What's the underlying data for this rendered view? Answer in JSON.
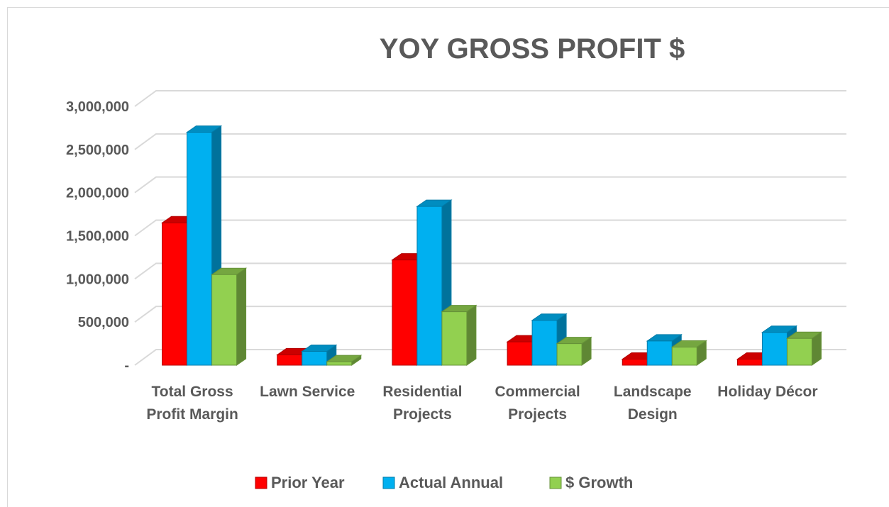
{
  "chart_data": {
    "type": "bar3d",
    "title": "YOY GROSS PROFIT $",
    "categories": [
      "Total Gross Profit Margin",
      "Lawn Service",
      "Residential Projects",
      "Commercial Projects",
      "Landscape Design",
      "Holiday Décor"
    ],
    "series": [
      {
        "name": "Prior Year",
        "color": "#ff0000",
        "values": [
          1650000,
          120000,
          1220000,
          270000,
          70000,
          70000
        ]
      },
      {
        "name": "Actual Annual",
        "color": "#00b0f0",
        "values": [
          2700000,
          160000,
          1840000,
          520000,
          280000,
          380000
        ]
      },
      {
        "name": "$ Growth",
        "color": "#92d050",
        "values": [
          1050000,
          40000,
          620000,
          250000,
          210000,
          310000
        ]
      }
    ],
    "ylim": [
      0,
      3000000
    ],
    "yticks": [
      {
        "value": 0,
        "label": "-"
      },
      {
        "value": 500000,
        "label": "500,000"
      },
      {
        "value": 1000000,
        "label": "1,000,000"
      },
      {
        "value": 1500000,
        "label": "1,500,000"
      },
      {
        "value": 2000000,
        "label": "2,000,000"
      },
      {
        "value": 2500000,
        "label": "2,500,000"
      },
      {
        "value": 3000000,
        "label": "3,000,000"
      }
    ],
    "grid": true,
    "legend": "bottom"
  }
}
